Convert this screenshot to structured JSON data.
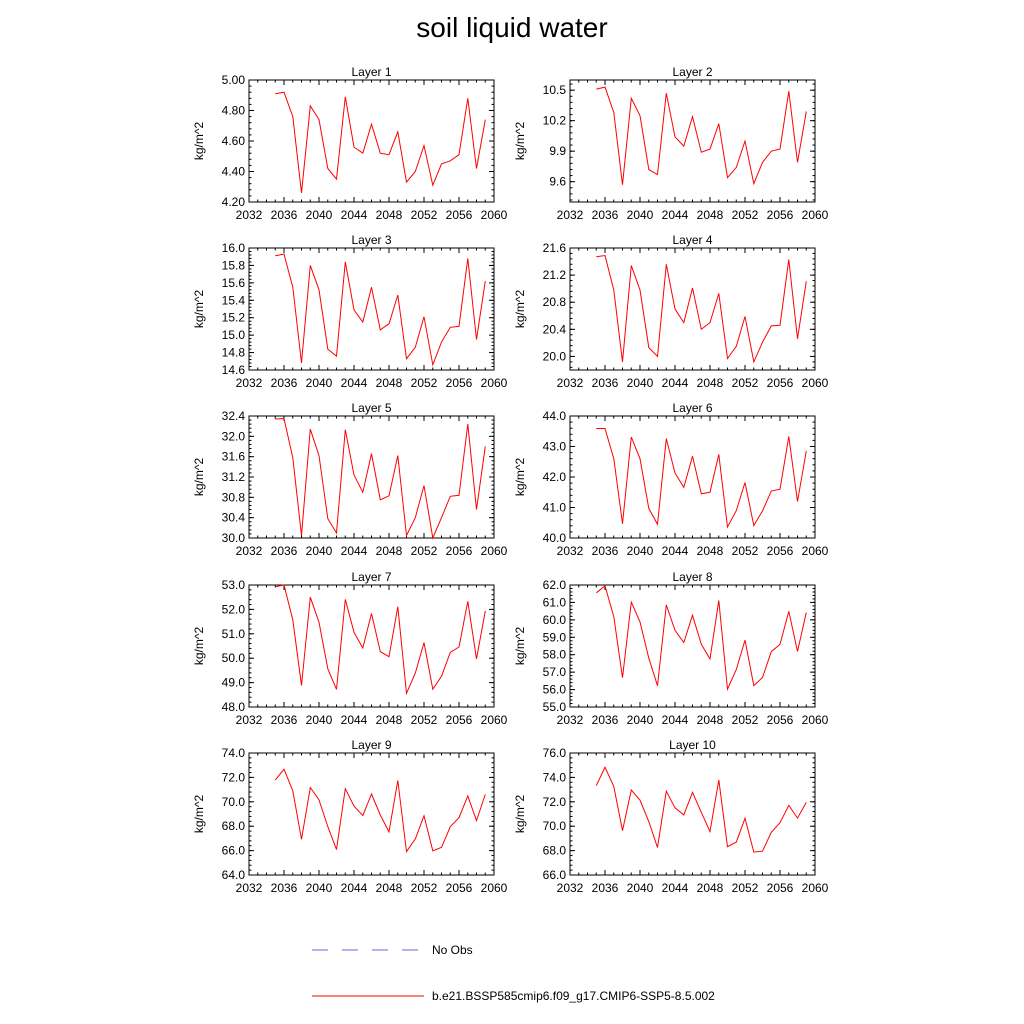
{
  "title": "soil liquid water",
  "chart_data": [
    {
      "type": "line",
      "title": "Layer 1",
      "xlabel": "",
      "ylabel": "kg/m^2",
      "xlim": [
        2032,
        2060
      ],
      "ylim": [
        4.2,
        5.0
      ],
      "xticks": [
        2032,
        2036,
        2040,
        2044,
        2048,
        2052,
        2056,
        2060
      ],
      "yticks": [
        4.2,
        4.4,
        4.6,
        4.8,
        5.0
      ],
      "ytick_labels": [
        "4.20",
        "4.40",
        "4.60",
        "4.80",
        "5.00"
      ],
      "x": [
        2035,
        2036,
        2037,
        2038,
        2039,
        2040,
        2041,
        2042,
        2043,
        2044,
        2045,
        2046,
        2047,
        2048,
        2049,
        2050,
        2051,
        2052,
        2053,
        2054,
        2055,
        2056,
        2057,
        2058,
        2059
      ],
      "series": [
        {
          "name": "b.e21.BSSP585cmip6.f09_g17.CMIP6-SSP5-8.5.002",
          "color": "#ff0000",
          "values": [
            4.91,
            4.92,
            4.76,
            4.26,
            4.83,
            4.74,
            4.42,
            4.35,
            4.89,
            4.56,
            4.52,
            4.71,
            4.52,
            4.51,
            4.66,
            4.33,
            4.4,
            4.57,
            4.31,
            4.45,
            4.47,
            4.51,
            4.88,
            4.42,
            4.74
          ]
        }
      ]
    },
    {
      "type": "line",
      "title": "Layer 2",
      "xlabel": "",
      "ylabel": "kg/m^2",
      "xlim": [
        2032,
        2060
      ],
      "ylim": [
        9.4,
        10.6
      ],
      "xticks": [
        2032,
        2036,
        2040,
        2044,
        2048,
        2052,
        2056,
        2060
      ],
      "yticks": [
        9.6,
        9.9,
        10.2,
        10.5
      ],
      "ytick_labels": [
        "9.6",
        "9.9",
        "10.2",
        "10.5"
      ],
      "x": [
        2035,
        2036,
        2037,
        2038,
        2039,
        2040,
        2041,
        2042,
        2043,
        2044,
        2045,
        2046,
        2047,
        2048,
        2049,
        2050,
        2051,
        2052,
        2053,
        2054,
        2055,
        2056,
        2057,
        2058,
        2059
      ],
      "series": [
        {
          "name": "b.e21.BSSP585cmip6.f09_g17.CMIP6-SSP5-8.5.002",
          "color": "#ff0000",
          "values": [
            10.51,
            10.53,
            10.28,
            9.57,
            10.42,
            10.25,
            9.72,
            9.67,
            10.47,
            10.04,
            9.95,
            10.24,
            9.89,
            9.92,
            10.17,
            9.64,
            9.74,
            10.0,
            9.58,
            9.79,
            9.9,
            9.92,
            10.49,
            9.79,
            10.29
          ]
        }
      ]
    },
    {
      "type": "line",
      "title": "Layer 3",
      "xlabel": "",
      "ylabel": "kg/m^2",
      "xlim": [
        2032,
        2060
      ],
      "ylim": [
        14.6,
        16.0
      ],
      "xticks": [
        2032,
        2036,
        2040,
        2044,
        2048,
        2052,
        2056,
        2060
      ],
      "yticks": [
        14.6,
        14.8,
        15.0,
        15.2,
        15.4,
        15.6,
        15.8,
        16.0
      ],
      "ytick_labels": [
        "14.6",
        "14.8",
        "15.0",
        "15.2",
        "15.4",
        "15.6",
        "15.8",
        "16.0"
      ],
      "x": [
        2035,
        2036,
        2037,
        2038,
        2039,
        2040,
        2041,
        2042,
        2043,
        2044,
        2045,
        2046,
        2047,
        2048,
        2049,
        2050,
        2051,
        2052,
        2053,
        2054,
        2055,
        2056,
        2057,
        2058,
        2059
      ],
      "series": [
        {
          "name": "b.e21.BSSP585cmip6.f09_g17.CMIP6-SSP5-8.5.002",
          "color": "#ff0000",
          "values": [
            15.91,
            15.93,
            15.55,
            14.68,
            15.8,
            15.52,
            14.84,
            14.76,
            15.84,
            15.29,
            15.15,
            15.55,
            15.06,
            15.13,
            15.46,
            14.73,
            14.86,
            15.21,
            14.66,
            14.92,
            15.09,
            15.1,
            15.88,
            14.95,
            15.62
          ]
        }
      ]
    },
    {
      "type": "line",
      "title": "Layer 4",
      "xlabel": "",
      "ylabel": "kg/m^2",
      "xlim": [
        2032,
        2060
      ],
      "ylim": [
        19.8,
        21.6
      ],
      "xticks": [
        2032,
        2036,
        2040,
        2044,
        2048,
        2052,
        2056,
        2060
      ],
      "yticks": [
        20.0,
        20.4,
        20.8,
        21.2,
        21.6
      ],
      "ytick_labels": [
        "20.0",
        "20.4",
        "20.8",
        "21.2",
        "21.6"
      ],
      "x": [
        2035,
        2036,
        2037,
        2038,
        2039,
        2040,
        2041,
        2042,
        2043,
        2044,
        2045,
        2046,
        2047,
        2048,
        2049,
        2050,
        2051,
        2052,
        2053,
        2054,
        2055,
        2056,
        2057,
        2058,
        2059
      ],
      "series": [
        {
          "name": "b.e21.BSSP585cmip6.f09_g17.CMIP6-SSP5-8.5.002",
          "color": "#ff0000",
          "values": [
            21.47,
            21.49,
            20.98,
            19.92,
            21.34,
            20.98,
            20.13,
            20.0,
            21.36,
            20.7,
            20.5,
            21.01,
            20.4,
            20.5,
            20.93,
            19.97,
            20.15,
            20.59,
            19.92,
            20.21,
            20.45,
            20.46,
            21.43,
            20.26,
            21.11
          ]
        }
      ]
    },
    {
      "type": "line",
      "title": "Layer 5",
      "xlabel": "",
      "ylabel": "kg/m^2",
      "xlim": [
        2032,
        2060
      ],
      "ylim": [
        30.0,
        32.4
      ],
      "xticks": [
        2032,
        2036,
        2040,
        2044,
        2048,
        2052,
        2056,
        2060
      ],
      "yticks": [
        30.0,
        30.4,
        30.8,
        31.2,
        31.6,
        32.0,
        32.4
      ],
      "ytick_labels": [
        "30.0",
        "30.4",
        "30.8",
        "31.2",
        "31.6",
        "32.0",
        "32.4"
      ],
      "x": [
        2035,
        2036,
        2037,
        2038,
        2039,
        2040,
        2041,
        2042,
        2043,
        2044,
        2045,
        2046,
        2047,
        2048,
        2049,
        2050,
        2051,
        2052,
        2053,
        2054,
        2055,
        2056,
        2057,
        2058,
        2059
      ],
      "series": [
        {
          "name": "b.e21.BSSP585cmip6.f09_g17.CMIP6-SSP5-8.5.002",
          "color": "#ff0000",
          "values": [
            32.34,
            32.35,
            31.58,
            30.05,
            32.14,
            31.62,
            30.38,
            30.1,
            32.13,
            31.24,
            30.9,
            31.66,
            30.75,
            30.83,
            31.62,
            30.05,
            30.4,
            31.03,
            30.0,
            30.4,
            30.82,
            30.84,
            32.24,
            30.56,
            31.8
          ]
        }
      ]
    },
    {
      "type": "line",
      "title": "Layer 6",
      "xlabel": "",
      "ylabel": "kg/m^2",
      "xlim": [
        2032,
        2060
      ],
      "ylim": [
        40.0,
        44.0
      ],
      "xticks": [
        2032,
        2036,
        2040,
        2044,
        2048,
        2052,
        2056,
        2060
      ],
      "yticks": [
        40.0,
        41.0,
        42.0,
        43.0,
        44.0
      ],
      "ytick_labels": [
        "40.0",
        "41.0",
        "42.0",
        "43.0",
        "44.0"
      ],
      "x": [
        2035,
        2036,
        2037,
        2038,
        2039,
        2040,
        2041,
        2042,
        2043,
        2044,
        2045,
        2046,
        2047,
        2048,
        2049,
        2050,
        2051,
        2052,
        2053,
        2054,
        2055,
        2056,
        2057,
        2058,
        2059
      ],
      "series": [
        {
          "name": "b.e21.BSSP585cmip6.f09_g17.CMIP6-SSP5-8.5.002",
          "color": "#ff0000",
          "values": [
            43.59,
            43.59,
            42.6,
            40.47,
            43.31,
            42.6,
            40.97,
            40.45,
            43.26,
            42.13,
            41.66,
            42.68,
            41.45,
            41.5,
            42.74,
            40.36,
            40.9,
            41.82,
            40.41,
            40.89,
            41.54,
            41.6,
            43.33,
            41.2,
            42.85
          ]
        }
      ]
    },
    {
      "type": "line",
      "title": "Layer 7",
      "xlabel": "",
      "ylabel": "kg/m^2",
      "xlim": [
        2032,
        2060
      ],
      "ylim": [
        48.0,
        53.0
      ],
      "xticks": [
        2032,
        2036,
        2040,
        2044,
        2048,
        2052,
        2056,
        2060
      ],
      "yticks": [
        48.0,
        49.0,
        50.0,
        51.0,
        52.0,
        53.0
      ],
      "ytick_labels": [
        "48.0",
        "49.0",
        "50.0",
        "51.0",
        "52.0",
        "53.0"
      ],
      "x": [
        2035,
        2036,
        2037,
        2038,
        2039,
        2040,
        2041,
        2042,
        2043,
        2044,
        2045,
        2046,
        2047,
        2048,
        2049,
        2050,
        2051,
        2052,
        2053,
        2054,
        2055,
        2056,
        2057,
        2058,
        2059
      ],
      "series": [
        {
          "name": "b.e21.BSSP585cmip6.f09_g17.CMIP6-SSP5-8.5.002",
          "color": "#ff0000",
          "values": [
            52.93,
            53.0,
            51.57,
            48.88,
            52.5,
            51.47,
            49.57,
            48.72,
            52.41,
            51.06,
            50.42,
            51.83,
            50.27,
            50.06,
            52.11,
            48.56,
            49.39,
            50.64,
            48.73,
            49.26,
            50.24,
            50.46,
            52.33,
            49.97,
            51.94
          ]
        }
      ]
    },
    {
      "type": "line",
      "title": "Layer 8",
      "xlabel": "",
      "ylabel": "kg/m^2",
      "xlim": [
        2032,
        2060
      ],
      "ylim": [
        55.0,
        62.0
      ],
      "xticks": [
        2032,
        2036,
        2040,
        2044,
        2048,
        2052,
        2056,
        2060
      ],
      "yticks": [
        55.0,
        56.0,
        57.0,
        58.0,
        59.0,
        60.0,
        61.0,
        62.0
      ],
      "ytick_labels": [
        "55.0",
        "56.0",
        "57.0",
        "58.0",
        "59.0",
        "60.0",
        "61.0",
        "62.0"
      ],
      "x": [
        2035,
        2036,
        2037,
        2038,
        2039,
        2040,
        2041,
        2042,
        2043,
        2044,
        2045,
        2046,
        2047,
        2048,
        2049,
        2050,
        2051,
        2052,
        2053,
        2054,
        2055,
        2056,
        2057,
        2058,
        2059
      ],
      "series": [
        {
          "name": "b.e21.BSSP585cmip6.f09_g17.CMIP6-SSP5-8.5.002",
          "color": "#ff0000",
          "values": [
            61.55,
            61.95,
            60.18,
            56.68,
            61.02,
            59.88,
            57.8,
            56.22,
            60.86,
            59.4,
            58.7,
            60.27,
            58.6,
            57.76,
            61.11,
            56.02,
            57.15,
            58.84,
            56.23,
            56.69,
            58.18,
            58.59,
            60.49,
            58.19,
            60.42
          ]
        }
      ]
    },
    {
      "type": "line",
      "title": "Layer 9",
      "xlabel": "",
      "ylabel": "kg/m^2",
      "xlim": [
        2032,
        2060
      ],
      "ylim": [
        64.0,
        74.0
      ],
      "xticks": [
        2032,
        2036,
        2040,
        2044,
        2048,
        2052,
        2056,
        2060
      ],
      "yticks": [
        64.0,
        66.0,
        68.0,
        70.0,
        72.0,
        74.0
      ],
      "ytick_labels": [
        "64.0",
        "66.0",
        "68.0",
        "70.0",
        "72.0",
        "74.0"
      ],
      "x": [
        2035,
        2036,
        2037,
        2038,
        2039,
        2040,
        2041,
        2042,
        2043,
        2044,
        2045,
        2046,
        2047,
        2048,
        2049,
        2050,
        2051,
        2052,
        2053,
        2054,
        2055,
        2056,
        2057,
        2058,
        2059
      ],
      "series": [
        {
          "name": "b.e21.BSSP585cmip6.f09_g17.CMIP6-SSP5-8.5.002",
          "color": "#ff0000",
          "values": [
            71.79,
            72.67,
            70.9,
            66.93,
            71.17,
            70.16,
            67.97,
            66.08,
            71.08,
            69.65,
            68.87,
            70.64,
            68.92,
            67.53,
            71.75,
            65.93,
            66.95,
            68.85,
            65.98,
            66.26,
            67.96,
            68.7,
            70.48,
            68.46,
            70.61
          ]
        }
      ]
    },
    {
      "type": "line",
      "title": "Layer 10",
      "xlabel": "",
      "ylabel": "kg/m^2",
      "xlim": [
        2032,
        2060
      ],
      "ylim": [
        66.0,
        76.0
      ],
      "xticks": [
        2032,
        2036,
        2040,
        2044,
        2048,
        2052,
        2056,
        2060
      ],
      "yticks": [
        66.0,
        68.0,
        70.0,
        72.0,
        74.0,
        76.0
      ],
      "ytick_labels": [
        "66.0",
        "68.0",
        "70.0",
        "72.0",
        "74.0",
        "76.0"
      ],
      "x": [
        2035,
        2036,
        2037,
        2038,
        2039,
        2040,
        2041,
        2042,
        2043,
        2044,
        2045,
        2046,
        2047,
        2048,
        2049,
        2050,
        2051,
        2052,
        2053,
        2054,
        2055,
        2056,
        2057,
        2058,
        2059
      ],
      "series": [
        {
          "name": "b.e21.BSSP585cmip6.f09_g17.CMIP6-SSP5-8.5.002",
          "color": "#ff0000",
          "values": [
            73.33,
            74.84,
            73.25,
            69.64,
            72.97,
            72.13,
            70.38,
            68.25,
            72.87,
            71.51,
            70.93,
            72.78,
            71.14,
            69.56,
            73.79,
            68.32,
            68.7,
            70.65,
            67.88,
            67.95,
            69.5,
            70.29,
            71.71,
            70.66,
            71.95
          ]
        }
      ]
    }
  ],
  "legend": {
    "placement": "bottom",
    "entries": [
      {
        "label": "No Obs",
        "color": "#6a6ad0",
        "style": "dashed"
      },
      {
        "label": "b.e21.BSSP585cmip6.f09_g17.CMIP6-SSP5-8.5.002",
        "color": "#ff0000",
        "style": "solid"
      }
    ]
  }
}
